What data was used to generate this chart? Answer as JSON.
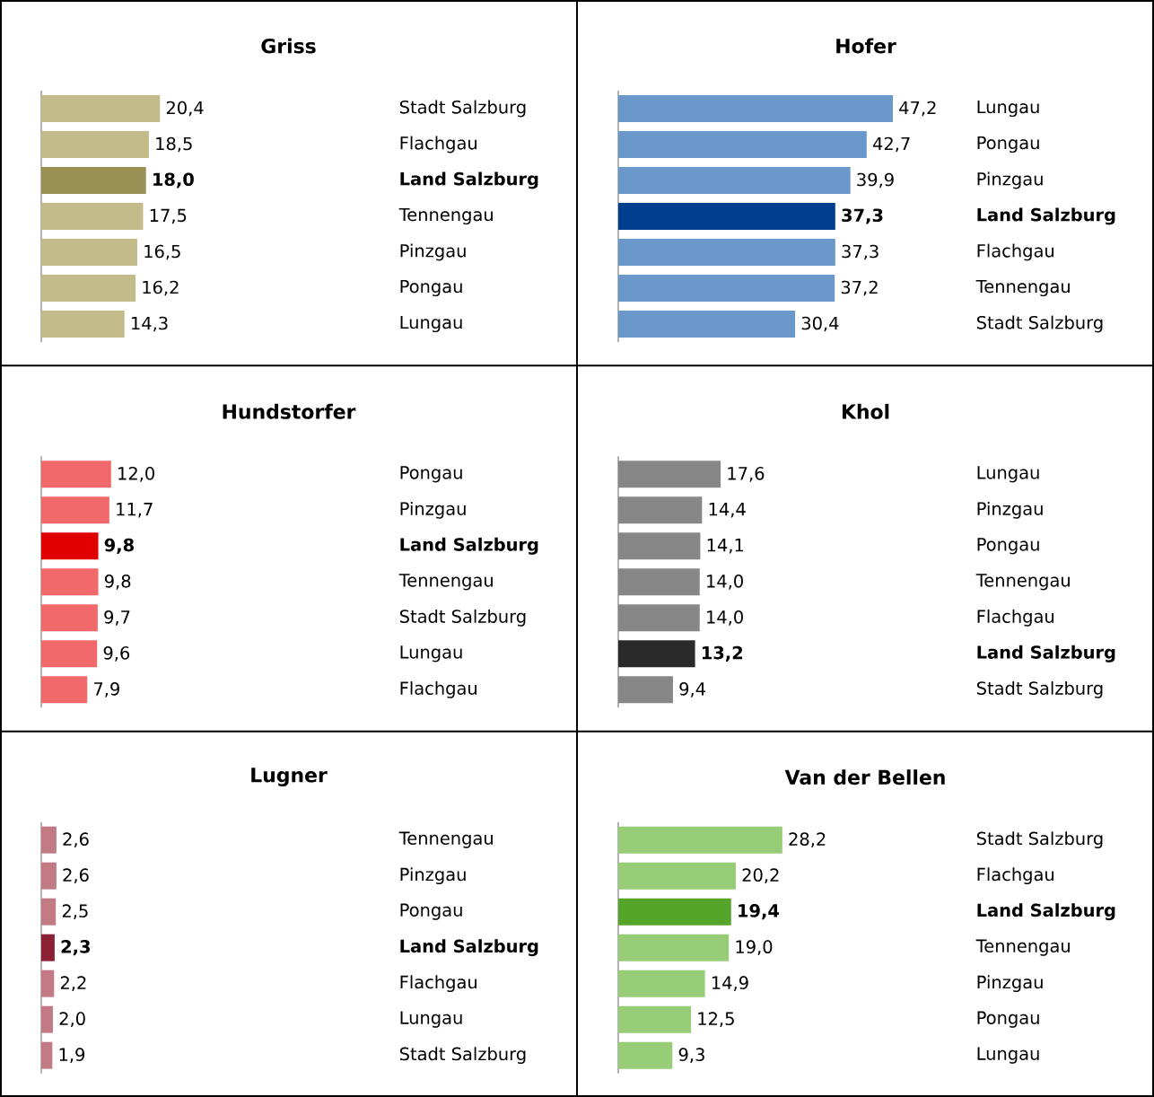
{
  "chart_data": [
    {
      "type": "bar",
      "orientation": "horizontal",
      "title": "Griss",
      "categories": [
        "Stadt Salzburg",
        "Flachgau",
        "**Land Salzburg**",
        "Tennengau",
        "Pinzgau",
        "Pongau",
        "Lungau"
      ],
      "values": [
        20.4,
        18.5,
        18.0,
        17.5,
        16.5,
        16.2,
        14.3
      ],
      "value_labels": [
        "20,4",
        "18,5",
        "**18,0**",
        "17,5",
        "16,5",
        "16,2",
        "14,3"
      ],
      "colors": [
        "#c3bb8a",
        "#c3bb8a",
        "#9a8f55",
        "#c3bb8a",
        "#c3bb8a",
        "#c3bb8a",
        "#c3bb8a"
      ],
      "tick_labels": "y"
    },
    {
      "type": "bar",
      "orientation": "horizontal",
      "title": "Hofer",
      "categories": [
        "Lungau",
        "Pongau",
        "Pinzgau",
        "**Land Salzburg**",
        "Flachgau",
        "Tennengau",
        "Stadt Salzburg"
      ],
      "values": [
        47.2,
        42.7,
        39.9,
        37.3,
        37.3,
        37.2,
        30.4
      ],
      "value_labels": [
        "47,2",
        "42,7",
        "39,9",
        "**37,3**",
        "37,3",
        "37,2",
        "30,4"
      ],
      "colors": [
        "#6a98cb",
        "#6a98cb",
        "#6a98cb",
        "#003f8f",
        "#6a98cb",
        "#6a98cb",
        "#6a98cb"
      ],
      "tick_labels": "y"
    },
    {
      "type": "bar",
      "orientation": "horizontal",
      "title": "Hundstorfer",
      "categories": [
        "Pongau",
        "Pinzgau",
        "**Land Salzburg**",
        "Tennengau",
        "Stadt Salzburg",
        "Lungau",
        "Flachgau"
      ],
      "values": [
        12.0,
        11.7,
        9.8,
        9.8,
        9.7,
        9.6,
        7.9
      ],
      "value_labels": [
        "12,0",
        "11,7",
        "**9,8**",
        "9,8",
        "9,7",
        "9,6",
        "7,9"
      ],
      "colors": [
        "#f2696b",
        "#f2696b",
        "#e00000",
        "#f2696b",
        "#f2696b",
        "#f2696b",
        "#f2696b"
      ],
      "tick_labels": "y"
    },
    {
      "type": "bar",
      "orientation": "horizontal",
      "title": "Khol",
      "categories": [
        "Lungau",
        "Pinzgau",
        "Pongau",
        "Tennengau",
        "Flachgau",
        "**Land Salzburg**",
        "Stadt Salzburg"
      ],
      "values": [
        17.6,
        14.4,
        14.1,
        14.0,
        14.0,
        13.2,
        9.4
      ],
      "value_labels": [
        "17,6",
        "14,4",
        "14,1",
        "14,0",
        "14,0",
        "**13,2**",
        "9,4"
      ],
      "colors": [
        "#878787",
        "#878787",
        "#878787",
        "#878787",
        "#878787",
        "#2a2a2a",
        "#878787"
      ],
      "tick_labels": "y"
    },
    {
      "type": "bar",
      "orientation": "horizontal",
      "title": "Lugner",
      "categories": [
        "Tennengau",
        "Pinzgau",
        "Pongau",
        "**Land Salzburg**",
        "Flachgau",
        "Lungau",
        "Stadt Salzburg"
      ],
      "values": [
        2.6,
        2.6,
        2.5,
        2.3,
        2.2,
        2.0,
        1.9
      ],
      "value_labels": [
        "2,6",
        "2,6",
        "2,5",
        "**2,3**",
        "2,2",
        "2,0",
        "1,9"
      ],
      "colors": [
        "#c27a85",
        "#c27a85",
        "#c27a85",
        "#8b2035",
        "#c27a85",
        "#c27a85",
        "#c27a85"
      ],
      "tick_labels": "y"
    },
    {
      "type": "bar",
      "orientation": "horizontal",
      "title": "Van der Bellen",
      "categories": [
        "Stadt Salzburg",
        "Flachgau",
        "**Land Salzburg**",
        "Tennengau",
        "Pinzgau",
        "Pongau",
        "Lungau"
      ],
      "values": [
        28.2,
        20.2,
        19.4,
        19.0,
        14.9,
        12.5,
        9.3
      ],
      "value_labels": [
        "28,2",
        "20,2",
        "**19,4**",
        "19,0",
        "14,9",
        "12,5",
        "9,3"
      ],
      "colors": [
        "#98cd78",
        "#98cd78",
        "#55a52b",
        "#98cd78",
        "#98cd78",
        "#98cd78",
        "#98cd78"
      ],
      "tick_labels": "y"
    }
  ]
}
